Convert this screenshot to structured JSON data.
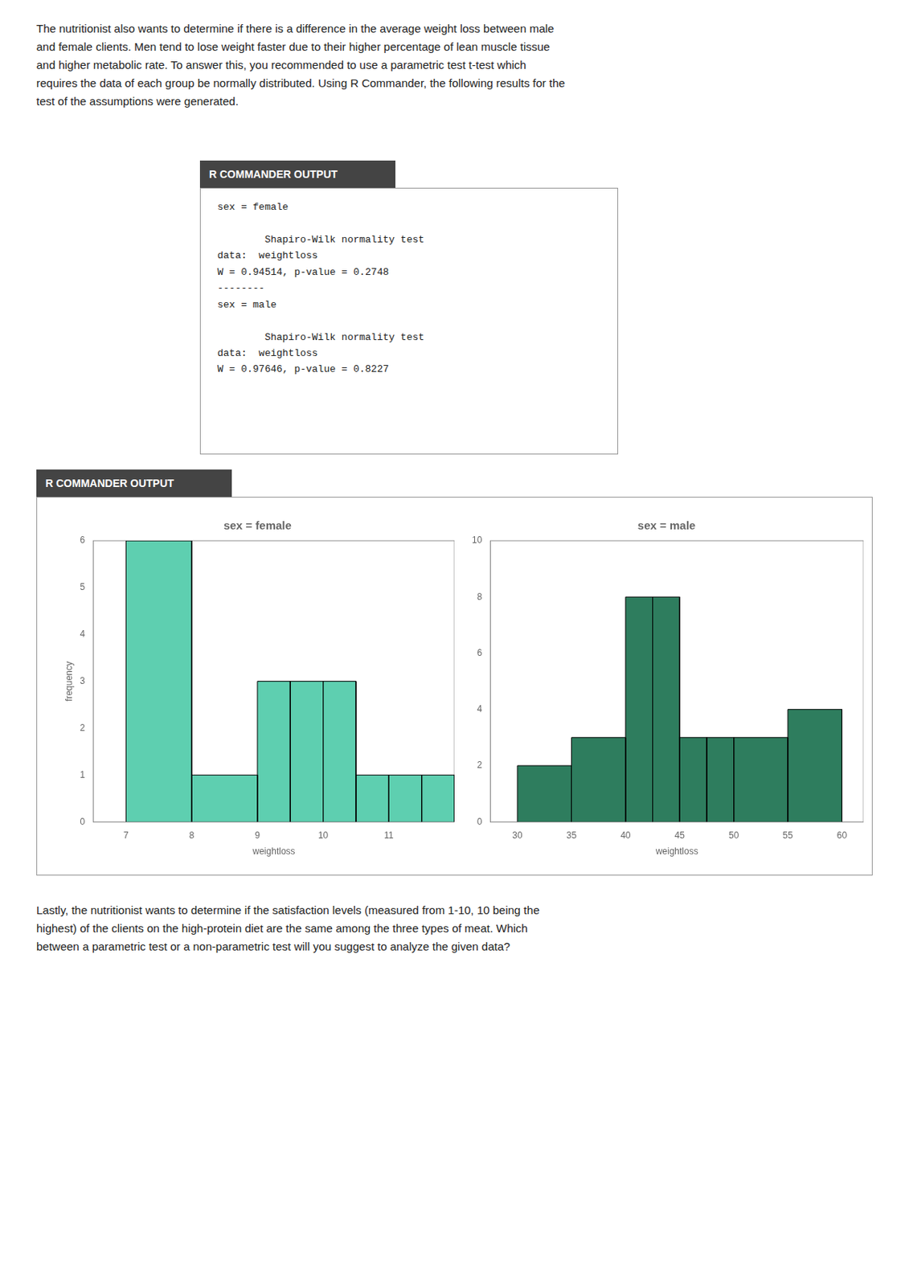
{
  "annotations": [
    "The nutritionist also wants to determine if there is a difference in the average weight loss between male\nand female clients. Men tend to lose weight faster due to their higher percentage of lean muscle tissue\nand higher metabolic rate. To answer this, you recommended to use a parametric test t-test which\nrequires the data of each group be normally distributed. Using R Commander, the following results for the\ntest of the assumptions were generated.",
    "R COMMANDER OUTPUT",
    "sex = female\n\n        Shapiro-Wilk normality test\ndata:  weightloss\nW = 0.94514, p-value = 0.2748\n--------\nsex = male\n\n        Shapiro-Wilk normality test\ndata:  weightloss\nW = 0.97646, p-value = 0.8227",
    "R COMMANDER OUTPUT",
    "Lastly, the nutritionist wants to determine if the satisfaction levels (measured from 1-10, 10 being the\nhighest) of the clients on the high-protein diet are the same among the three types of meat. Which\nbetween a parametric test or a non-parametric test will you suggest to analyze the given data?"
  ],
  "chart_data": [
    {
      "type": "histogram",
      "title": "sex = female",
      "xlabel": "weightloss",
      "ylabel": "frequency",
      "bins": [
        7,
        8,
        9,
        9.5,
        10,
        10.5,
        11,
        11.5,
        12
      ],
      "values": [
        6,
        1,
        3,
        3,
        3,
        1,
        1,
        1
      ],
      "color": "#5ECFB0",
      "xlim": [
        6.5,
        12.0
      ],
      "ylim": [
        0,
        6
      ],
      "xticks": [
        7,
        8,
        9,
        10,
        11
      ],
      "yticks": [
        0,
        1,
        2,
        3,
        4,
        5,
        6
      ],
      "grid": false
    },
    {
      "type": "histogram",
      "title": "sex = male",
      "xlabel": "weightloss",
      "bins": [
        30,
        35,
        40,
        42.5,
        45,
        47.5,
        50,
        55,
        60
      ],
      "values": [
        2,
        3,
        8,
        8,
        3,
        3,
        3,
        4
      ],
      "color": "#2E7D5E",
      "xlim": [
        27.5,
        62
      ],
      "ylim": [
        0,
        10
      ],
      "xticks": [
        30,
        35,
        40,
        45,
        50,
        55,
        60
      ],
      "yticks": [
        0,
        2,
        4,
        6,
        8,
        10
      ],
      "grid": false
    }
  ]
}
